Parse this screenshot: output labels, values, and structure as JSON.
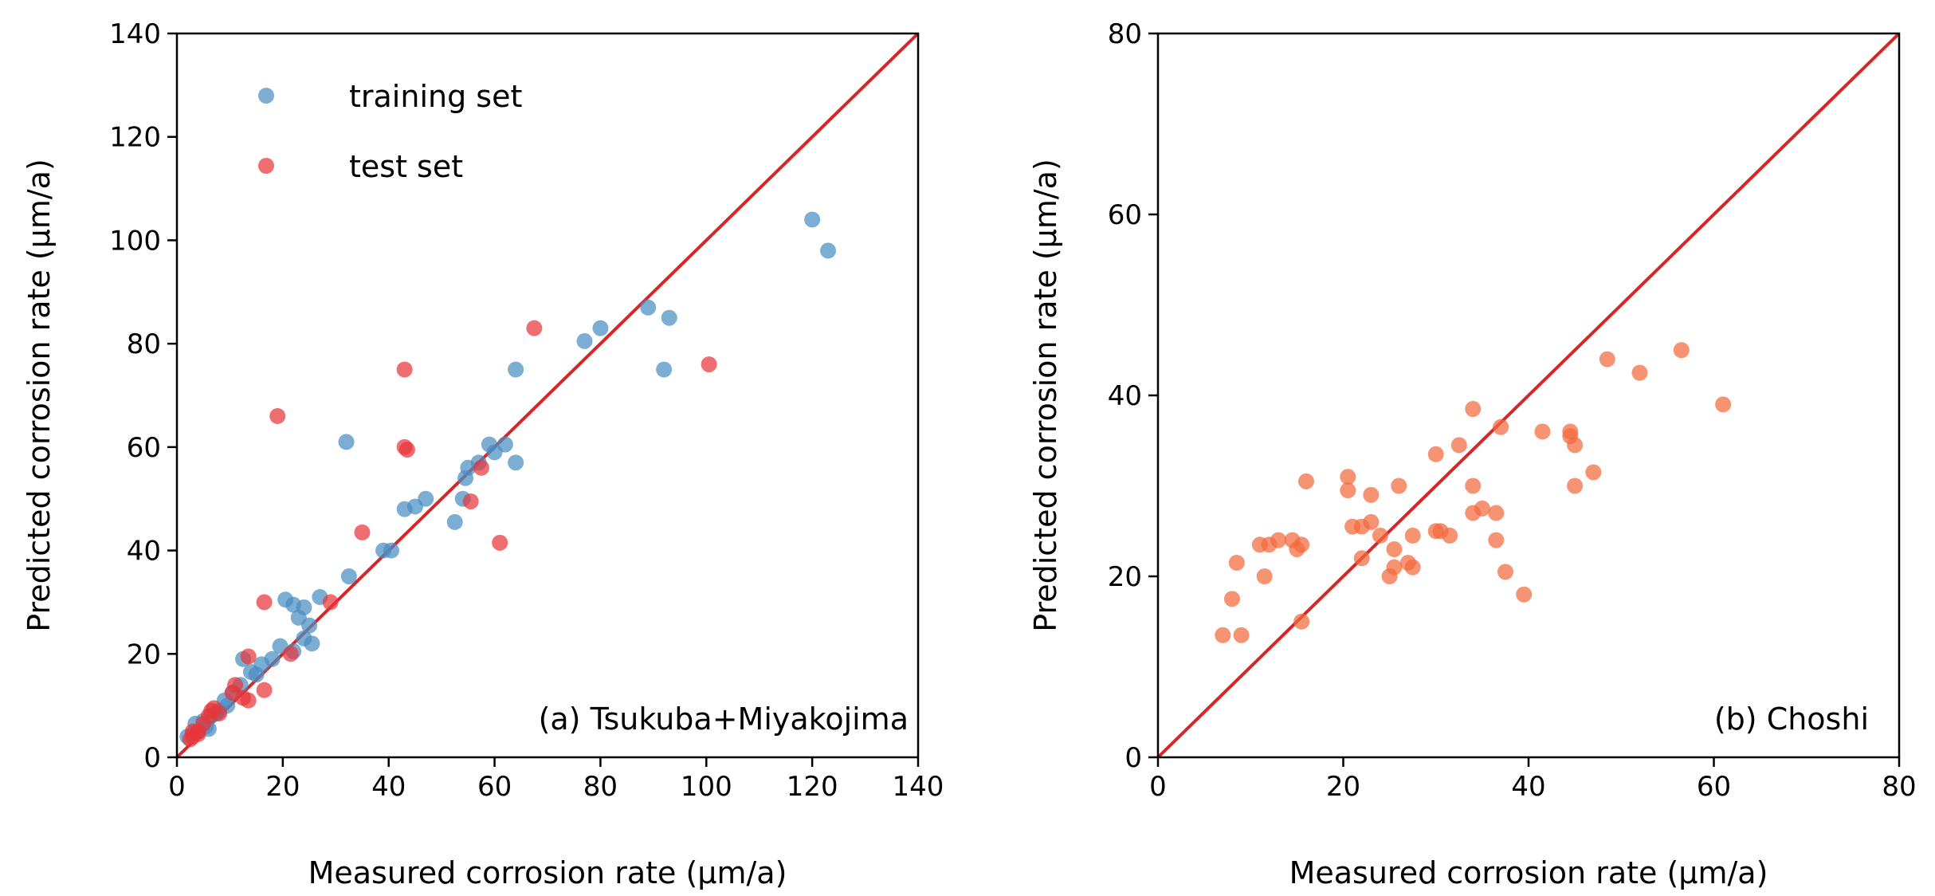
{
  "chart_data": [
    {
      "type": "scatter",
      "panel": "a",
      "annotation": "(a) Tsukuba+Miyakojima",
      "xlabel": "Measured corrosion rate (μm/a)",
      "ylabel": "Predicted corrosion rate (μm/a)",
      "xlim": [
        0,
        140
      ],
      "ylim": [
        0,
        140
      ],
      "xticks": [
        "0",
        "20",
        "40",
        "60",
        "80",
        "100",
        "120",
        "140"
      ],
      "yticks": [
        "0",
        "20",
        "40",
        "60",
        "80",
        "100",
        "120",
        "140"
      ],
      "legend": "top-left",
      "reference_line": "y = x",
      "colors": {
        "training": "#4a8ec2",
        "test": "#e8363a",
        "line": "#d62728"
      },
      "series": [
        {
          "name": "training set",
          "points": [
            [
              120,
              104
            ],
            [
              123,
              98
            ],
            [
              89,
              87
            ],
            [
              93,
              85
            ],
            [
              80,
              83
            ],
            [
              77,
              80.5
            ],
            [
              92,
              75
            ],
            [
              64,
              75
            ],
            [
              32,
              61
            ],
            [
              62,
              60.5
            ],
            [
              59,
              60.5
            ],
            [
              60,
              59
            ],
            [
              57,
              57
            ],
            [
              64,
              57
            ],
            [
              55,
              56
            ],
            [
              54.5,
              54
            ],
            [
              47,
              50
            ],
            [
              54,
              50
            ],
            [
              45,
              48.5
            ],
            [
              43,
              48
            ],
            [
              52.5,
              45.5
            ],
            [
              39,
              40
            ],
            [
              40.5,
              40
            ],
            [
              32.5,
              35
            ],
            [
              27,
              31
            ],
            [
              20.5,
              30.5
            ],
            [
              22,
              29.5
            ],
            [
              24,
              29
            ],
            [
              23,
              27
            ],
            [
              25,
              25.5
            ],
            [
              24,
              23
            ],
            [
              25.5,
              22
            ],
            [
              19.5,
              21.5
            ],
            [
              22,
              20.5
            ],
            [
              18,
              19
            ],
            [
              12.5,
              19
            ],
            [
              16,
              18
            ],
            [
              14,
              16.5
            ],
            [
              15,
              16
            ],
            [
              12,
              14
            ],
            [
              10.5,
              12.5
            ],
            [
              9,
              11
            ],
            [
              9.5,
              10
            ],
            [
              8,
              9
            ],
            [
              7.5,
              8.5
            ],
            [
              6.5,
              8
            ],
            [
              5,
              7
            ],
            [
              3.5,
              6.5
            ],
            [
              5.5,
              6
            ],
            [
              6,
              5.5
            ],
            [
              4,
              5
            ],
            [
              2,
              4
            ],
            [
              3,
              4.5
            ]
          ]
        },
        {
          "name": "test set",
          "points": [
            [
              100.5,
              76
            ],
            [
              67.5,
              83
            ],
            [
              43,
              75
            ],
            [
              19,
              66
            ],
            [
              43,
              60
            ],
            [
              43.5,
              59.5
            ],
            [
              57.5,
              56
            ],
            [
              55.5,
              49.5
            ],
            [
              35,
              43.5
            ],
            [
              61,
              41.5
            ],
            [
              29,
              30
            ],
            [
              16.5,
              30
            ],
            [
              21.5,
              20
            ],
            [
              16.5,
              13
            ],
            [
              13.5,
              19.5
            ],
            [
              11,
              14
            ],
            [
              10.5,
              12.5
            ],
            [
              12.5,
              11.5
            ],
            [
              13.5,
              11
            ],
            [
              7,
              9.5
            ],
            [
              6.5,
              9
            ],
            [
              6,
              8
            ],
            [
              8,
              8.5
            ],
            [
              5,
              6.5
            ],
            [
              4,
              5
            ],
            [
              3,
              4
            ],
            [
              4,
              4.5
            ],
            [
              2.5,
              3.5
            ],
            [
              3,
              5
            ]
          ]
        }
      ]
    },
    {
      "type": "scatter",
      "panel": "b",
      "annotation": "(b) Choshi",
      "xlabel": "Measured corrosion rate (μm/a)",
      "ylabel": "Predicted corrosion rate (μm/a)",
      "xlim": [
        0,
        80
      ],
      "ylim": [
        0,
        80
      ],
      "xticks": [
        "0",
        "20",
        "40",
        "60",
        "80"
      ],
      "yticks": [
        "0",
        "20",
        "40",
        "60",
        "80"
      ],
      "reference_line": "y = x",
      "colors": {
        "points": "#f26a3d",
        "line": "#d62728"
      },
      "series": [
        {
          "points": [
            [
              56.5,
              45
            ],
            [
              48.5,
              44
            ],
            [
              52,
              42.5
            ],
            [
              61,
              39
            ],
            [
              34,
              38.5
            ],
            [
              37,
              36.5
            ],
            [
              41.5,
              36
            ],
            [
              44.5,
              36
            ],
            [
              44.5,
              35.5
            ],
            [
              45,
              34.5
            ],
            [
              32.5,
              34.5
            ],
            [
              30,
              33.5
            ],
            [
              47,
              31.5
            ],
            [
              20.5,
              31
            ],
            [
              16,
              30.5
            ],
            [
              26,
              30
            ],
            [
              34,
              30
            ],
            [
              45,
              30
            ],
            [
              20.5,
              29.5
            ],
            [
              23,
              29
            ],
            [
              35,
              27.5
            ],
            [
              36.5,
              27
            ],
            [
              34,
              27
            ],
            [
              21,
              25.5
            ],
            [
              22,
              25.5
            ],
            [
              23,
              26
            ],
            [
              24,
              24.5
            ],
            [
              31.5,
              24.5
            ],
            [
              30,
              25
            ],
            [
              30.5,
              25
            ],
            [
              27.5,
              24.5
            ],
            [
              11,
              23.5
            ],
            [
              13,
              24
            ],
            [
              14.5,
              24
            ],
            [
              15.5,
              23.5
            ],
            [
              12,
              23.5
            ],
            [
              15,
              23
            ],
            [
              25.5,
              23
            ],
            [
              36.5,
              24
            ],
            [
              22,
              22
            ],
            [
              27,
              21.5
            ],
            [
              27.5,
              21
            ],
            [
              25.5,
              21
            ],
            [
              25,
              20
            ],
            [
              37.5,
              20.5
            ],
            [
              8.5,
              21.5
            ],
            [
              11.5,
              20
            ],
            [
              39.5,
              18
            ],
            [
              8,
              17.5
            ],
            [
              15.5,
              15
            ],
            [
              7,
              13.5
            ],
            [
              9,
              13.5
            ]
          ]
        }
      ]
    }
  ]
}
